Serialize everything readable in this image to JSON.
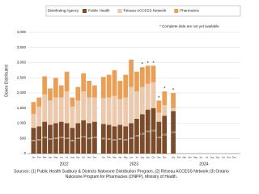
{
  "chart_data": {
    "type": "stacked_bar",
    "y_label": "Doses Distributed",
    "legend_title": "Distributing Agency",
    "note": "* Complete data are not yet available",
    "incomplete_marker": "*",
    "years": [
      "2022",
      "2023",
      "2024"
    ],
    "categories": [
      "Jan",
      "Feb",
      "Mar",
      "Apr",
      "May",
      "Jun",
      "Jul",
      "Aug",
      "Sep",
      "Oct",
      "Nov",
      "Dec",
      "Jan",
      "Feb",
      "Mar",
      "Apr",
      "May",
      "Jun",
      "Jul",
      "Aug",
      "Sep",
      "Oct",
      "Nov",
      "Dec",
      "Jan",
      "Feb",
      "Mar",
      "Apr",
      "May",
      "Jun",
      "Jul",
      "Aug",
      "Sep",
      "Oct",
      "Nov",
      "Dec"
    ],
    "incomplete": [
      false,
      false,
      false,
      false,
      false,
      false,
      false,
      false,
      false,
      false,
      false,
      false,
      false,
      false,
      false,
      false,
      false,
      false,
      false,
      true,
      true,
      true,
      true,
      true,
      true,
      false,
      false,
      false,
      false,
      false,
      false,
      false,
      false,
      false,
      false,
      false
    ],
    "series": [
      {
        "name": "Public Health",
        "color": "#7b4b2a",
        "values": [
          850,
          900,
          1050,
          950,
          1000,
          1050,
          1000,
          850,
          1000,
          1100,
          1000,
          1050,
          980,
          950,
          900,
          950,
          900,
          1000,
          1150,
          1300,
          1450,
          1500,
          1050,
          1250,
          1400,
          null,
          null,
          null,
          null,
          null,
          null,
          null,
          null,
          null,
          null,
          null
        ],
        "value_labels": [
          "850",
          "900",
          "1,050",
          "950",
          "1,000",
          "1,050",
          "1,000",
          "850",
          "1,000",
          "1,100",
          "1,000",
          "1,050",
          "980",
          "950",
          "900",
          "950",
          "900",
          "1,000",
          "1,150",
          "1,300",
          "1,450",
          "1,500",
          "1,050",
          "1,250",
          "1,400",
          null,
          null,
          null,
          null,
          null,
          null,
          null,
          null,
          null,
          null,
          null
        ]
      },
      {
        "name": "Réseau ACCESS Network",
        "color": "#ecc9ad",
        "values": [
          450,
          650,
          900,
          800,
          850,
          800,
          1050,
          700,
          750,
          950,
          850,
          800,
          850,
          900,
          1000,
          850,
          950,
          1200,
          900,
          900,
          850,
          850,
          300,
          350,
          100,
          null,
          null,
          null,
          null,
          null,
          null,
          null,
          null,
          null,
          null,
          null
        ]
      },
      {
        "name": "Pharmacies",
        "color": "#e9a056",
        "values": [
          400,
          300,
          600,
          400,
          650,
          400,
          650,
          300,
          450,
          600,
          550,
          400,
          700,
          750,
          850,
          600,
          750,
          900,
          650,
          650,
          600,
          550,
          400,
          450,
          500,
          null,
          null,
          null,
          null,
          null,
          null,
          null,
          null,
          null,
          null,
          null
        ]
      }
    ],
    "ylim": [
      0,
      4000
    ],
    "yticks": [
      0,
      500,
      {
        "value": 1000,
        "label": "1,000"
      },
      {
        "value": 1500,
        "label": "1,500"
      },
      {
        "value": 2000,
        "label": "2,000"
      },
      {
        "value": 2500,
        "label": "2,500"
      },
      {
        "value": 3000,
        "label": "3,000"
      },
      {
        "value": 3500,
        "label": "3,500"
      },
      {
        "value": 4000,
        "label": "4,000"
      }
    ],
    "grid": true,
    "source": [
      "Sources: (1) Public Health Sudbury & Districts Naloxone Distribution Program, (2) Réseau ACCESS Network (3) Ontario",
      "Naloxone Program for Pharmacies (ONPP), Ministry of Health."
    ]
  }
}
